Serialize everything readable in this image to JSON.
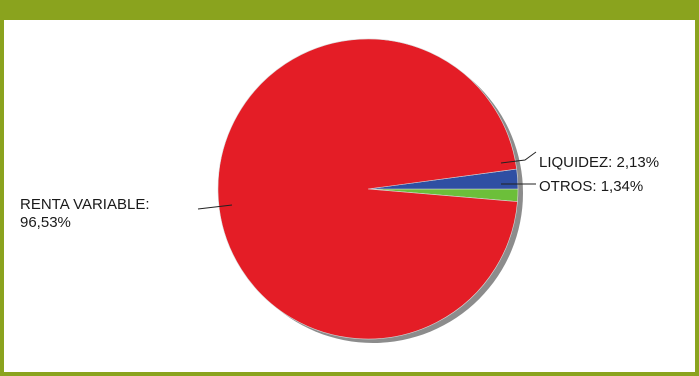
{
  "chart_data": {
    "type": "pie",
    "slices": [
      {
        "label": "RENTA VARIABLE:",
        "value_text": "96,53%",
        "value": 96.53,
        "color": "#e41d26"
      },
      {
        "label": "LIQUIDEZ:",
        "value_text": "2,13%",
        "value": 2.13,
        "color": "#2f4fa3"
      },
      {
        "label": "OTROS:",
        "value_text": "1,34%",
        "value": 1.34,
        "color": "#6cbf3a"
      }
    ],
    "start_angle_deg": 0,
    "direction": "counterclockwise-from-east",
    "legend": "none"
  },
  "colors": {
    "frame": "#8aa31e",
    "shadow": "#8c8c8c"
  }
}
